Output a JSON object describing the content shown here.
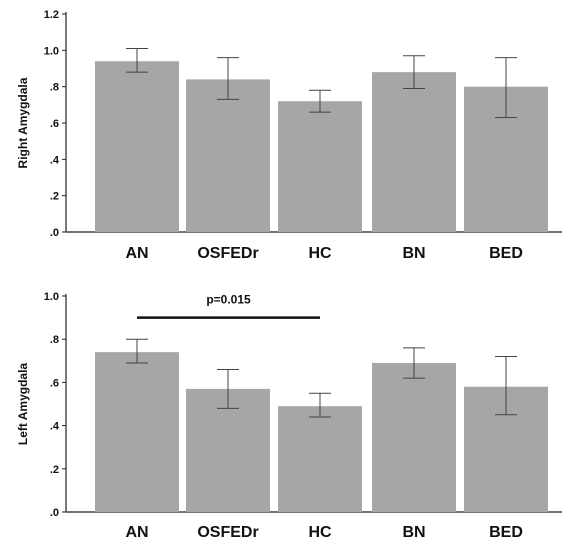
{
  "chart_data": [
    {
      "type": "bar",
      "ylabel": "Right Amygdala",
      "categories": [
        "AN",
        "OSFEDr",
        "HC",
        "BN",
        "BED"
      ],
      "values": [
        0.94,
        0.84,
        0.72,
        0.88,
        0.8
      ],
      "error_low": [
        0.88,
        0.73,
        0.66,
        0.79,
        0.63
      ],
      "error_high": [
        1.01,
        0.96,
        0.78,
        0.97,
        0.96
      ],
      "ylim": [
        0,
        1.2
      ],
      "yticks": [
        0,
        0.2,
        0.4,
        0.6,
        0.8,
        1.0,
        1.2
      ],
      "ytick_labels": [
        ".0",
        ".2",
        ".4",
        ".6",
        ".8",
        "1.0",
        "1.2"
      ],
      "bar_color": "#a6a6a6",
      "grid": false
    },
    {
      "type": "bar",
      "ylabel": "Left Amygdala",
      "categories": [
        "AN",
        "OSFEDr",
        "HC",
        "BN",
        "BED"
      ],
      "values": [
        0.74,
        0.57,
        0.49,
        0.69,
        0.58
      ],
      "error_low": [
        0.69,
        0.48,
        0.44,
        0.62,
        0.45
      ],
      "error_high": [
        0.8,
        0.66,
        0.55,
        0.76,
        0.72
      ],
      "ylim": [
        0,
        1.0
      ],
      "yticks": [
        0,
        0.2,
        0.4,
        0.6,
        0.8,
        1.0
      ],
      "ytick_labels": [
        ".0",
        ".2",
        ".4",
        ".6",
        ".8",
        "1.0"
      ],
      "bar_color": "#a6a6a6",
      "grid": false,
      "annotation": {
        "text": "p=0.015",
        "from": "AN",
        "to": "HC",
        "y": 0.9
      }
    }
  ]
}
